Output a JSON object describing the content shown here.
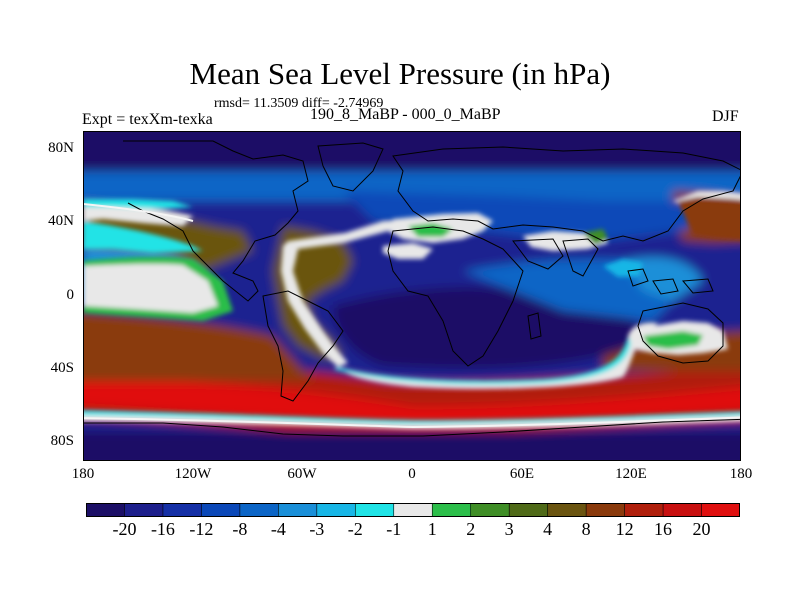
{
  "title": "Mean Sea Level Pressure (in hPa)",
  "stats": "rmsd= 11.3509 diff= -2.74969",
  "left_label": "Expt = texXm-texka",
  "center_label": "190_8_MaBP - 000_0_MaBP",
  "right_label": "DJF",
  "lat_ticks": [
    "80N",
    "40N",
    "0",
    "40S",
    "80S"
  ],
  "lon_ticks": [
    "180",
    "120W",
    "60W",
    "0",
    "60E",
    "120E",
    "180"
  ],
  "colorbar": {
    "labels": [
      "-20",
      "-16",
      "-12",
      "-8",
      "-4",
      "-3",
      "-2",
      "-1",
      "1",
      "2",
      "3",
      "4",
      "8",
      "12",
      "16",
      "20"
    ],
    "colors": [
      "#1c0f66",
      "#1d1f8c",
      "#1530a6",
      "#0b48b8",
      "#0c65c6",
      "#1a8fd8",
      "#18b6e6",
      "#20e3e6",
      "#e8e8e8",
      "#2cbe4a",
      "#3f8e26",
      "#4f6a18",
      "#6a5410",
      "#8a3a0c",
      "#b01f0c",
      "#c81010",
      "#e01010"
    ]
  }
}
